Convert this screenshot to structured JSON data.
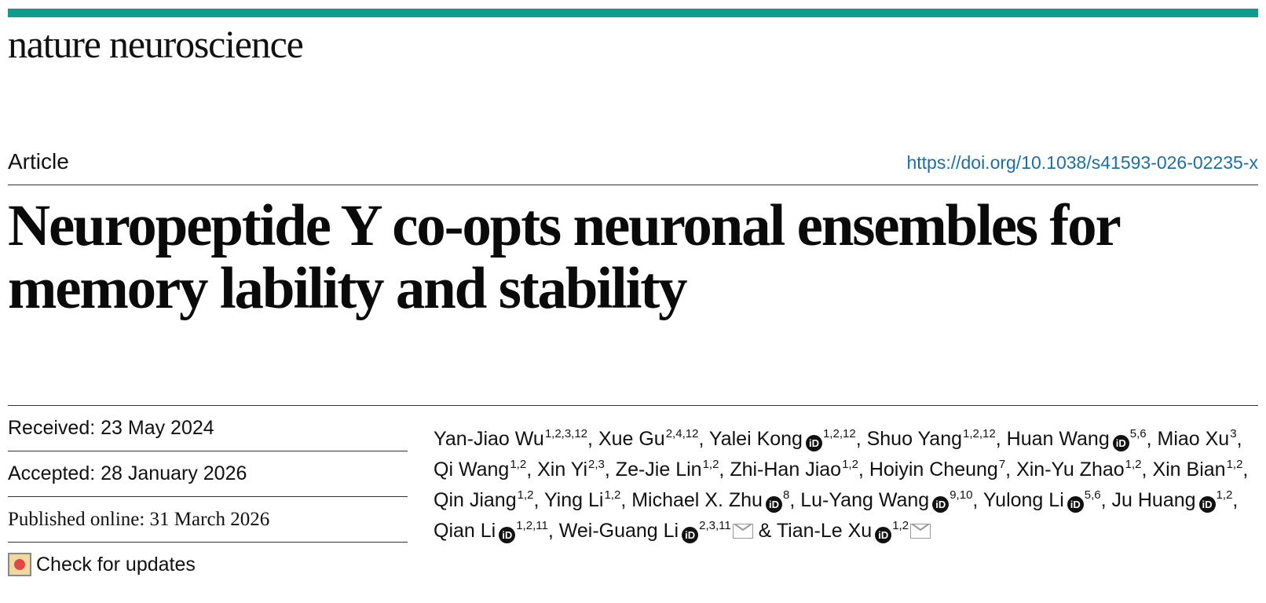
{
  "colors": {
    "accent_bar": "#0f9b8e",
    "doi_link": "#1a6fa8"
  },
  "journal": {
    "name": "nature neuroscience"
  },
  "article": {
    "type": "Article",
    "doi": "https://doi.org/10.1038/s41593-026-02235-x",
    "title": "Neuropeptide Y co-opts neuronal ensembles for memory lability and stability"
  },
  "dates": {
    "received": "Received: 23 May 2024",
    "accepted": "Accepted: 28 January 2026",
    "published": "Published online: 31 March 2026"
  },
  "check_updates": {
    "label": "Check for updates",
    "icon": "check-for-updates-icon"
  },
  "authors": [
    {
      "name": "Yan-Jiao Wu",
      "affil": "1,2,3,12",
      "orcid": false,
      "sep": ", "
    },
    {
      "name": "Xue Gu",
      "affil": "2,4,12",
      "orcid": false,
      "sep": ", "
    },
    {
      "name": "Yalei Kong",
      "affil": "1,2,12",
      "orcid": true,
      "sep": ", "
    },
    {
      "name": "Shuo Yang",
      "affil": "1,2,12",
      "orcid": false,
      "sep": ", "
    },
    {
      "name": "Huan Wang",
      "affil": "5,6",
      "orcid": true,
      "sep": ", "
    },
    {
      "name": "Miao Xu",
      "affil": "3",
      "orcid": false,
      "sep": ", "
    },
    {
      "name": "Qi Wang",
      "affil": "1,2",
      "orcid": false,
      "sep": ", "
    },
    {
      "name": "Xin Yi",
      "affil": "2,3",
      "orcid": false,
      "sep": ", "
    },
    {
      "name": "Ze-Jie Lin",
      "affil": "1,2",
      "orcid": false,
      "sep": ", "
    },
    {
      "name": "Zhi-Han Jiao",
      "affil": "1,2",
      "orcid": false,
      "sep": ", "
    },
    {
      "name": "Hoiyin Cheung",
      "affil": "7",
      "orcid": false,
      "sep": ", "
    },
    {
      "name": "Xin-Yu Zhao",
      "affil": "1,2",
      "orcid": false,
      "sep": ", "
    },
    {
      "name": "Xin Bian",
      "affil": "1,2",
      "orcid": false,
      "sep": ", "
    },
    {
      "name": "Qin Jiang",
      "affil": "1,2",
      "orcid": false,
      "sep": ", "
    },
    {
      "name": "Ying Li",
      "affil": "1,2",
      "orcid": false,
      "sep": ", "
    },
    {
      "name": "Michael X. Zhu",
      "affil": "8",
      "orcid": true,
      "sep": ", "
    },
    {
      "name": "Lu-Yang Wang",
      "affil": "9,10",
      "orcid": true,
      "sep": ", "
    },
    {
      "name": "Yulong Li",
      "affil": "5,6",
      "orcid": true,
      "sep": ", "
    },
    {
      "name": "Ju Huang",
      "affil": "1,2",
      "orcid": true,
      "sep": ", "
    },
    {
      "name": "Qian Li",
      "affil": "1,2,11",
      "orcid": true,
      "sep": ", "
    },
    {
      "name": "Wei-Guang Li",
      "affil": "2,3,11",
      "orcid": true,
      "corresponding": true,
      "sep": " & "
    },
    {
      "name": "Tian-Le Xu",
      "affil": "1,2",
      "orcid": true,
      "corresponding": true,
      "sep": ""
    }
  ]
}
